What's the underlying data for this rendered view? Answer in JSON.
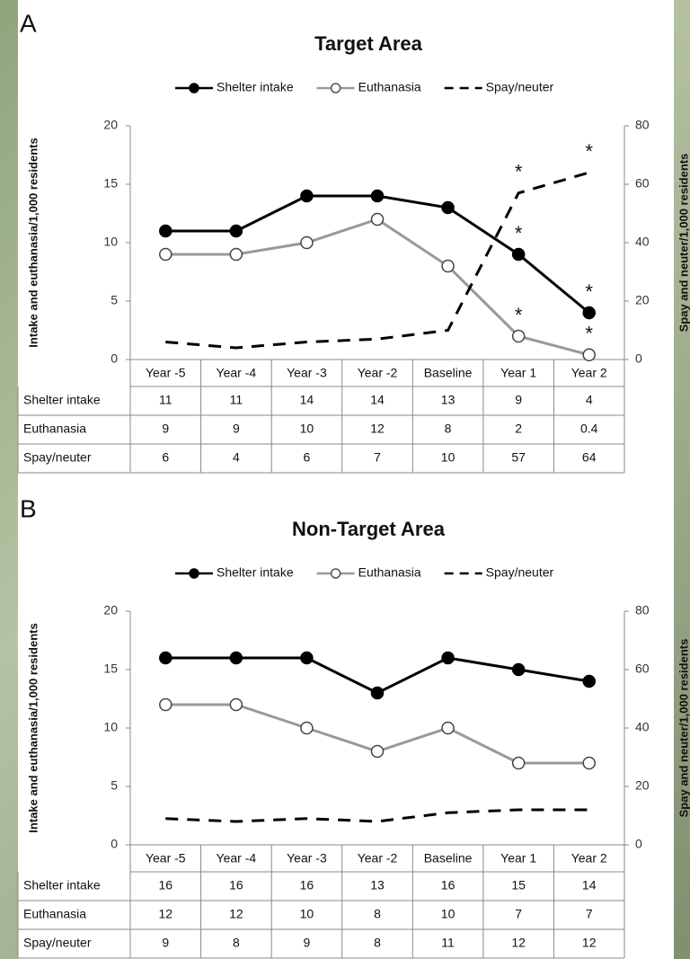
{
  "chart_data": [
    {
      "type": "line",
      "panel_label": "A",
      "title": "Target Area",
      "y_label": "Intake and euthanasia/1,000 residents",
      "y2_label": "Spay and neuter/1,000 residents",
      "categories": [
        "Year -5",
        "Year -4",
        "Year -3",
        "Year -2",
        "Baseline",
        "Year 1",
        "Year 2"
      ],
      "ylim": [
        0,
        20
      ],
      "yticks": [
        0,
        5,
        10,
        15,
        20
      ],
      "y2lim": [
        0,
        80
      ],
      "y2ticks": [
        0,
        20,
        40,
        60,
        80
      ],
      "series": [
        {
          "name": "Shelter intake",
          "color": "#000000",
          "style": "solid",
          "marker": "filled",
          "values": [
            11,
            11,
            14,
            14,
            13,
            9,
            4
          ],
          "annotations": [
            null,
            null,
            null,
            null,
            null,
            "*",
            "*"
          ]
        },
        {
          "name": "Euthanasia",
          "color": "#999999",
          "style": "solid",
          "marker": "open",
          "values": [
            9,
            9,
            10,
            12,
            8,
            2,
            0.4
          ],
          "annotations": [
            null,
            null,
            null,
            null,
            null,
            "*",
            "*"
          ]
        },
        {
          "name": "Spay/neuter",
          "color": "#000000",
          "style": "dashed",
          "marker": "none",
          "axis": "y2",
          "values": [
            6,
            4,
            6,
            7,
            10,
            57,
            64
          ],
          "annotations": [
            null,
            null,
            null,
            null,
            null,
            "*",
            "*"
          ]
        }
      ]
    },
    {
      "type": "line",
      "panel_label": "B",
      "title": "Non-Target Area",
      "y_label": "Intake and euthanasia/1,000 residents",
      "y2_label": "Spay and neuter/1,000 residents",
      "categories": [
        "Year -5",
        "Year -4",
        "Year -3",
        "Year -2",
        "Baseline",
        "Year 1",
        "Year 2"
      ],
      "ylim": [
        0,
        20
      ],
      "yticks": [
        0,
        5,
        10,
        15,
        20
      ],
      "y2lim": [
        0,
        80
      ],
      "y2ticks": [
        0,
        20,
        40,
        60,
        80
      ],
      "series": [
        {
          "name": "Shelter intake",
          "color": "#000000",
          "style": "solid",
          "marker": "filled",
          "values": [
            16,
            16,
            16,
            13,
            16,
            15,
            14
          ]
        },
        {
          "name": "Euthanasia",
          "color": "#999999",
          "style": "solid",
          "marker": "open",
          "values": [
            12,
            12,
            10,
            8,
            10,
            7,
            7
          ]
        },
        {
          "name": "Spay/neuter",
          "color": "#000000",
          "style": "dashed",
          "marker": "none",
          "axis": "y2",
          "values": [
            9,
            8,
            9,
            8,
            11,
            12,
            12
          ]
        }
      ]
    }
  ]
}
